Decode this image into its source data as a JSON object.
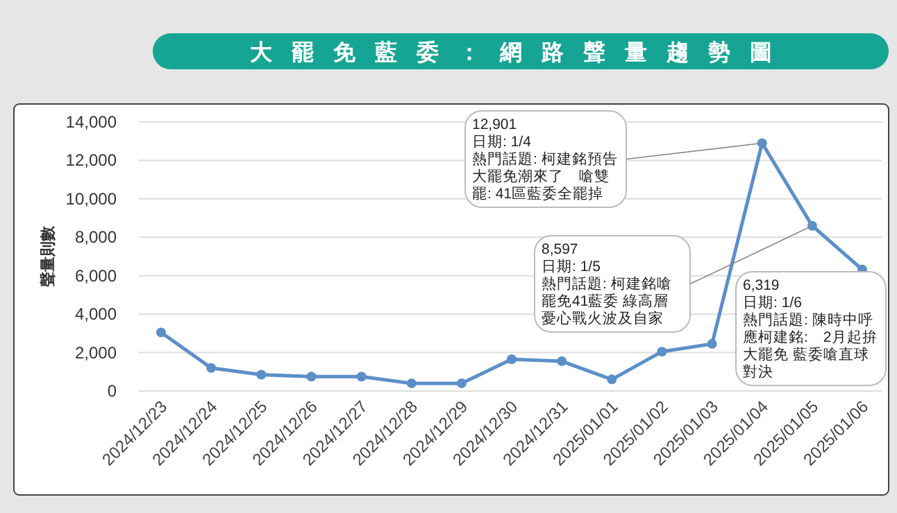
{
  "chart_data": {
    "type": "line",
    "title": "大罷免藍委：網路聲量趨勢圖",
    "ylabel": "聲量則數",
    "categories": [
      "2024/12/23",
      "2024/12/24",
      "2024/12/25",
      "2024/12/26",
      "2024/12/27",
      "2024/12/28",
      "2024/12/29",
      "2024/12/30",
      "2024/12/31",
      "2025/01/01",
      "2025/01/02",
      "2025/01/03",
      "2025/01/04",
      "2025/01/05",
      "2025/01/06"
    ],
    "series": [
      {
        "color": "#5b8fc9",
        "values": [
          3050,
          1200,
          850,
          750,
          750,
          400,
          400,
          1650,
          1550,
          600,
          2050,
          2450,
          12901,
          8597,
          6319
        ]
      }
    ],
    "ylim": [
      0,
      14000
    ],
    "yticks": [
      {
        "value": 0,
        "label": "0"
      },
      {
        "value": 2000,
        "label": "2,000"
      },
      {
        "value": 4000,
        "label": "4,000"
      },
      {
        "value": 6000,
        "label": "6,000"
      },
      {
        "value": 8000,
        "label": "8,000"
      },
      {
        "value": 10000,
        "label": "10,000"
      },
      {
        "value": 12000,
        "label": "12,000"
      },
      {
        "value": 14000,
        "label": "14,000"
      }
    ],
    "grid": "y",
    "marker": "circle",
    "line_style": "solid",
    "annotations": [
      {
        "text": "12,901\n日期: 1/4\n熱門話題: 柯建銘預告大罷免潮來了　嗆雙罷:  41區藍委全罷掉",
        "x": "2025/01/04",
        "y": 12901
      },
      {
        "text": "8,597\n日期: 1/5\n熱門話題: 柯建銘嗆罷免41藍委 綠高層憂心戰火波及自家",
        "x": "2025/01/05",
        "y": 8597
      },
      {
        "text": "6,319\n日期: 1/6\n熱門話題: 陳時中呼應柯建銘:　2月起拚大罷免 藍委嗆直球對決",
        "x": "2025/01/06",
        "y": 6319
      }
    ]
  }
}
